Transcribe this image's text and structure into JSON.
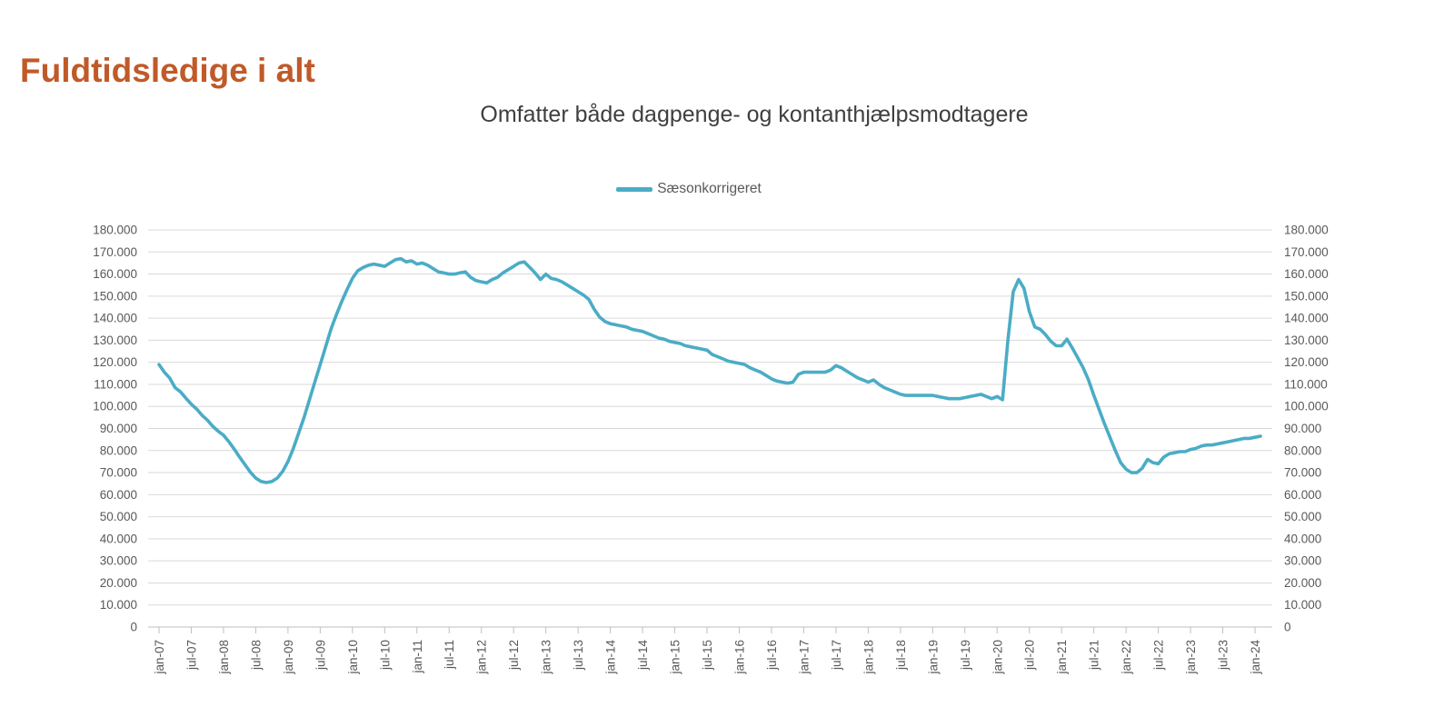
{
  "page": {
    "title": "Fuldtidsledige i alt"
  },
  "chart": {
    "subtitle": "Omfatter både dagpenge- og kontanthjælpsmodtagere",
    "legend_label": "Sæsonkorrigeret"
  },
  "colors": {
    "title": "#C05A28",
    "subtitle": "#3F3F3F",
    "axis_text": "#595959",
    "gridline": "#D9D9D9",
    "axis_line": "#BFBFBF",
    "series_line": "#4BACC6"
  },
  "chart_data": {
    "type": "line",
    "title": "Omfatter både dagpenge- og kontanthjælpsmodtagere",
    "legend_position": "top-center",
    "grid": "horizontal",
    "x_unit": "month",
    "x_start": "jan-07",
    "x_end": "feb-24",
    "xlabel": "",
    "ylabel": "",
    "ylim": [
      0,
      180000
    ],
    "y_tick_step": 10000,
    "y_tick_labels": [
      "0",
      "10.000",
      "20.000",
      "30.000",
      "40.000",
      "50.000",
      "60.000",
      "70.000",
      "80.000",
      "90.000",
      "100.000",
      "110.000",
      "120.000",
      "130.000",
      "140.000",
      "150.000",
      "160.000",
      "170.000",
      "180.000"
    ],
    "x_tick_labels": [
      "jan-07",
      "jul-07",
      "jan-08",
      "jul-08",
      "jan-09",
      "jul-09",
      "jan-10",
      "jul-10",
      "jan-11",
      "jul-11",
      "jan-12",
      "jul-12",
      "jan-13",
      "jul-13",
      "jan-14",
      "jul-14",
      "jan-15",
      "jul-15",
      "jan-16",
      "jul-16",
      "jan-17",
      "jul-17",
      "jan-18",
      "jul-18",
      "jan-19",
      "jul-19",
      "jan-20",
      "jul-20",
      "jan-21",
      "jul-21",
      "jan-22",
      "jul-22",
      "jan-23",
      "jul-23",
      "jan-24"
    ],
    "x_tick_every_n_months": 6,
    "series": [
      {
        "name": "Sæsonkorrigeret",
        "color": "#4BACC6",
        "values": [
          119000,
          115500,
          112800,
          108500,
          106600,
          103700,
          101000,
          98800,
          96000,
          93800,
          91000,
          88800,
          87000,
          84000,
          80600,
          77000,
          73600,
          70200,
          67500,
          66000,
          65500,
          66000,
          67500,
          70500,
          75000,
          81000,
          88000,
          95000,
          103000,
          111000,
          119000,
          127000,
          135000,
          141500,
          147500,
          153000,
          158000,
          161500,
          163000,
          164000,
          164500,
          164000,
          163500,
          165000,
          166500,
          167000,
          165500,
          166000,
          164500,
          165000,
          164000,
          162500,
          161000,
          160500,
          160000,
          160000,
          160500,
          161000,
          158500,
          157000,
          156500,
          156000,
          157500,
          158500,
          160500,
          162000,
          163500,
          165000,
          165500,
          163000,
          160500,
          157500,
          160000,
          158000,
          157500,
          156500,
          155000,
          153500,
          152000,
          150500,
          148500,
          144000,
          140500,
          138500,
          137500,
          137000,
          136500,
          136000,
          135000,
          134500,
          134000,
          133000,
          132000,
          131000,
          130500,
          129500,
          129000,
          128500,
          127500,
          127000,
          126500,
          126000,
          125500,
          123500,
          122500,
          121500,
          120500,
          120000,
          119500,
          119000,
          117500,
          116500,
          115500,
          114000,
          112500,
          111500,
          111000,
          110500,
          111000,
          114500,
          115500,
          115500,
          115500,
          115500,
          115500,
          116500,
          118500,
          117500,
          116000,
          114500,
          113000,
          112000,
          111000,
          112000,
          110000,
          108500,
          107500,
          106500,
          105500,
          105000,
          105000,
          105000,
          105000,
          105000,
          105000,
          104500,
          104000,
          103500,
          103500,
          103500,
          104000,
          104500,
          105000,
          105500,
          104500,
          103500,
          104500,
          103000,
          130000,
          152000,
          157500,
          153500,
          143000,
          136000,
          135000,
          132500,
          129500,
          127500,
          127500,
          130500,
          126500,
          122000,
          117500,
          112000,
          105000,
          98500,
          92000,
          86000,
          80000,
          74500,
          71500,
          70000,
          70000,
          72000,
          76000,
          74500,
          74000,
          77000,
          78500,
          79000,
          79500,
          79500,
          80500,
          81000,
          82000,
          82500,
          82500,
          83000,
          83500,
          84000,
          84500,
          85000,
          85500,
          85500,
          86000,
          86500
        ]
      }
    ]
  }
}
